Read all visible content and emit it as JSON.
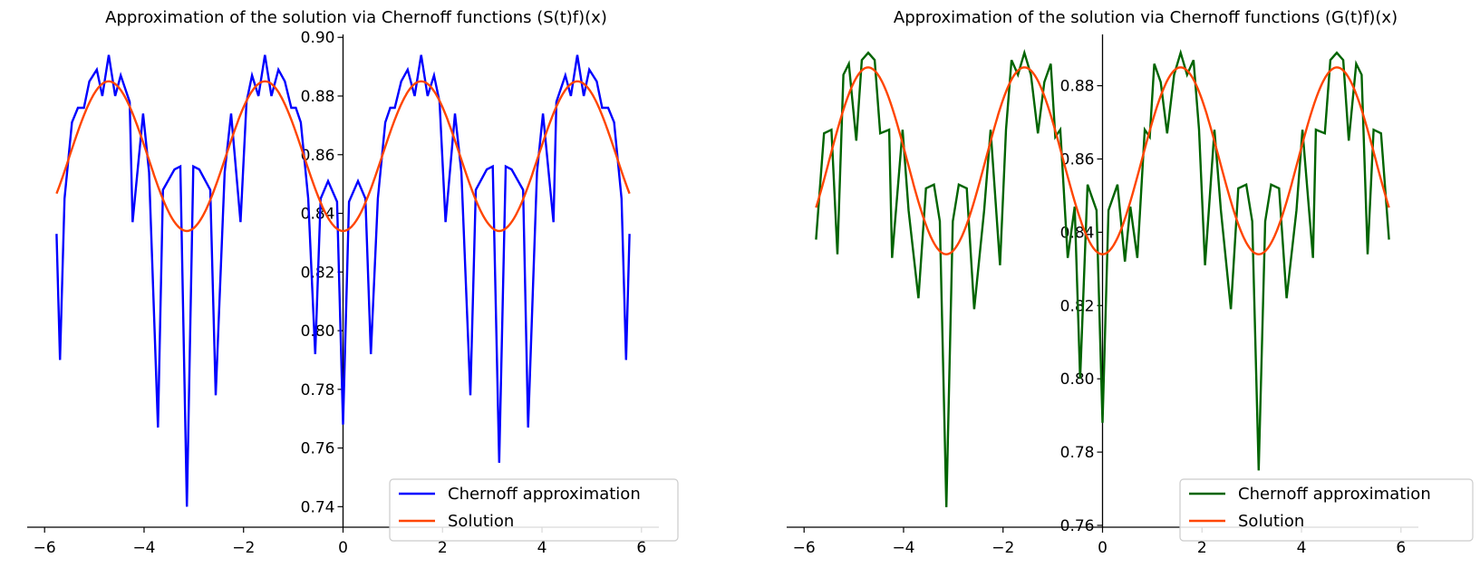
{
  "chart_data": [
    {
      "type": "line",
      "title": "Approximation of the solution via Chernoff functions (S(t)f)(x)",
      "xlabel": "",
      "ylabel": "",
      "xlim": [
        -6.35,
        6.35
      ],
      "ylim": [
        0.733,
        0.901
      ],
      "xticks": [
        -6,
        -4,
        -2,
        0,
        2,
        4,
        6
      ],
      "xtick_labels": [
        "−6",
        "−4",
        "−2",
        "0",
        "2",
        "4",
        "6"
      ],
      "yticks": [
        0.74,
        0.76,
        0.78,
        0.8,
        0.82,
        0.84,
        0.86,
        0.88,
        0.9
      ],
      "ytick_labels": [
        "0.74",
        "0.76",
        "0.78",
        "0.80",
        "0.82",
        "0.84",
        "0.86",
        "0.88",
        "0.90"
      ],
      "spines": "centered",
      "grid": false,
      "legend_position": "lower right",
      "series": [
        {
          "name": "Chernoff approximation",
          "color": "#0000ff",
          "x": [
            -5.76,
            -5.69,
            -5.6,
            -5.45,
            -5.33,
            -5.21,
            -5.1,
            -4.95,
            -4.84,
            -4.71,
            -4.58,
            -4.47,
            -4.29,
            -4.23,
            -4.02,
            -3.9,
            -3.72,
            -3.62,
            -3.39,
            -3.27,
            -3.14,
            -3.01,
            -2.89,
            -2.67,
            -2.56,
            -2.38,
            -2.25,
            -2.06,
            -1.94,
            -1.83,
            -1.7,
            -1.57,
            -1.44,
            -1.3,
            -1.17,
            -1.04,
            -0.95,
            -0.85,
            -0.7,
            -0.56,
            -0.45,
            -0.3,
            -0.12,
            0.0,
            0.12,
            0.3,
            0.45,
            0.56,
            0.7,
            0.85,
            0.95,
            1.04,
            1.17,
            1.3,
            1.44,
            1.57,
            1.7,
            1.83,
            1.94,
            2.06,
            2.25,
            2.38,
            2.56,
            2.67,
            2.89,
            3.01,
            3.14,
            3.27,
            3.39,
            3.62,
            3.72,
            3.9,
            4.02,
            4.23,
            4.29,
            4.47,
            4.58,
            4.71,
            4.84,
            4.95,
            5.1,
            5.21,
            5.33,
            5.45,
            5.6,
            5.69,
            5.76
          ],
          "y": [
            0.833,
            0.79,
            0.845,
            0.871,
            0.876,
            0.876,
            0.885,
            0.889,
            0.88,
            0.894,
            0.88,
            0.887,
            0.878,
            0.837,
            0.874,
            0.854,
            0.767,
            0.848,
            0.855,
            0.856,
            0.74,
            0.856,
            0.855,
            0.848,
            0.778,
            0.854,
            0.874,
            0.837,
            0.878,
            0.887,
            0.88,
            0.894,
            0.88,
            0.889,
            0.885,
            0.876,
            0.876,
            0.871,
            0.845,
            0.792,
            0.845,
            0.851,
            0.844,
            0.768,
            0.844,
            0.851,
            0.845,
            0.792,
            0.845,
            0.871,
            0.876,
            0.876,
            0.885,
            0.889,
            0.88,
            0.894,
            0.88,
            0.887,
            0.878,
            0.837,
            0.874,
            0.854,
            0.778,
            0.848,
            0.855,
            0.856,
            0.755,
            0.856,
            0.855,
            0.848,
            0.767,
            0.854,
            0.874,
            0.837,
            0.878,
            0.887,
            0.88,
            0.894,
            0.88,
            0.889,
            0.885,
            0.876,
            0.876,
            0.871,
            0.845,
            0.79,
            0.833
          ]
        },
        {
          "name": "Solution",
          "color": "#ff4500",
          "function": "0.859 + 0.0255*sin(x)^2 - 0.0255*cos(x)^2 style: peaks 0.885 at ±pi/2, troughs 0.834 at 0, ±pi",
          "x_range": [
            -5.76,
            5.76
          ],
          "peak_value": 0.885,
          "trough_value": 0.834
        }
      ]
    },
    {
      "type": "line",
      "title": "Approximation of the solution via Chernoff functions (G(t)f)(x)",
      "xlabel": "",
      "ylabel": "",
      "xlim": [
        -6.35,
        6.35
      ],
      "ylim": [
        0.7595,
        0.894
      ],
      "xticks": [
        -6,
        -4,
        -2,
        0,
        2,
        4,
        6
      ],
      "xtick_labels": [
        "−6",
        "−4",
        "−2",
        "0",
        "2",
        "4",
        "6"
      ],
      "yticks": [
        0.76,
        0.78,
        0.8,
        0.82,
        0.84,
        0.86,
        0.88
      ],
      "ytick_labels": [
        "0.76",
        "0.78",
        "0.80",
        "0.82",
        "0.84",
        "0.86",
        "0.88"
      ],
      "spines": "centered",
      "grid": false,
      "legend_position": "lower right",
      "series": [
        {
          "name": "Chernoff approximation",
          "color": "#006400",
          "x": [
            -5.76,
            -5.6,
            -5.45,
            -5.33,
            -5.21,
            -5.1,
            -4.95,
            -4.84,
            -4.71,
            -4.58,
            -4.47,
            -4.29,
            -4.23,
            -4.02,
            -3.9,
            -3.7,
            -3.55,
            -3.39,
            -3.27,
            -3.14,
            -3.01,
            -2.89,
            -2.73,
            -2.58,
            -2.38,
            -2.25,
            -2.06,
            -1.94,
            -1.83,
            -1.7,
            -1.57,
            -1.44,
            -1.3,
            -1.17,
            -1.04,
            -0.95,
            -0.85,
            -0.7,
            -0.56,
            -0.45,
            -0.3,
            -0.12,
            0.0,
            0.12,
            0.3,
            0.45,
            0.56,
            0.7,
            0.85,
            0.95,
            1.04,
            1.17,
            1.3,
            1.44,
            1.57,
            1.7,
            1.83,
            1.94,
            2.06,
            2.25,
            2.38,
            2.58,
            2.73,
            2.89,
            3.01,
            3.14,
            3.27,
            3.39,
            3.55,
            3.7,
            3.9,
            4.02,
            4.23,
            4.29,
            4.47,
            4.58,
            4.71,
            4.84,
            4.95,
            5.1,
            5.21,
            5.33,
            5.45,
            5.6,
            5.76
          ],
          "y": [
            0.838,
            0.867,
            0.868,
            0.834,
            0.883,
            0.886,
            0.865,
            0.887,
            0.889,
            0.887,
            0.867,
            0.868,
            0.833,
            0.868,
            0.846,
            0.822,
            0.852,
            0.853,
            0.843,
            0.765,
            0.843,
            0.853,
            0.852,
            0.819,
            0.846,
            0.868,
            0.831,
            0.868,
            0.887,
            0.883,
            0.889,
            0.883,
            0.867,
            0.881,
            0.886,
            0.866,
            0.868,
            0.833,
            0.847,
            0.8,
            0.853,
            0.846,
            0.788,
            0.846,
            0.853,
            0.832,
            0.847,
            0.833,
            0.868,
            0.866,
            0.886,
            0.881,
            0.867,
            0.883,
            0.889,
            0.883,
            0.887,
            0.868,
            0.831,
            0.868,
            0.846,
            0.819,
            0.852,
            0.853,
            0.843,
            0.775,
            0.843,
            0.853,
            0.852,
            0.822,
            0.846,
            0.868,
            0.833,
            0.868,
            0.867,
            0.887,
            0.889,
            0.887,
            0.865,
            0.886,
            0.883,
            0.834,
            0.868,
            0.867,
            0.838
          ]
        },
        {
          "name": "Solution",
          "color": "#ff4500",
          "x_range": [
            -5.76,
            5.76
          ],
          "peak_value": 0.885,
          "trough_value": 0.834
        }
      ]
    }
  ]
}
